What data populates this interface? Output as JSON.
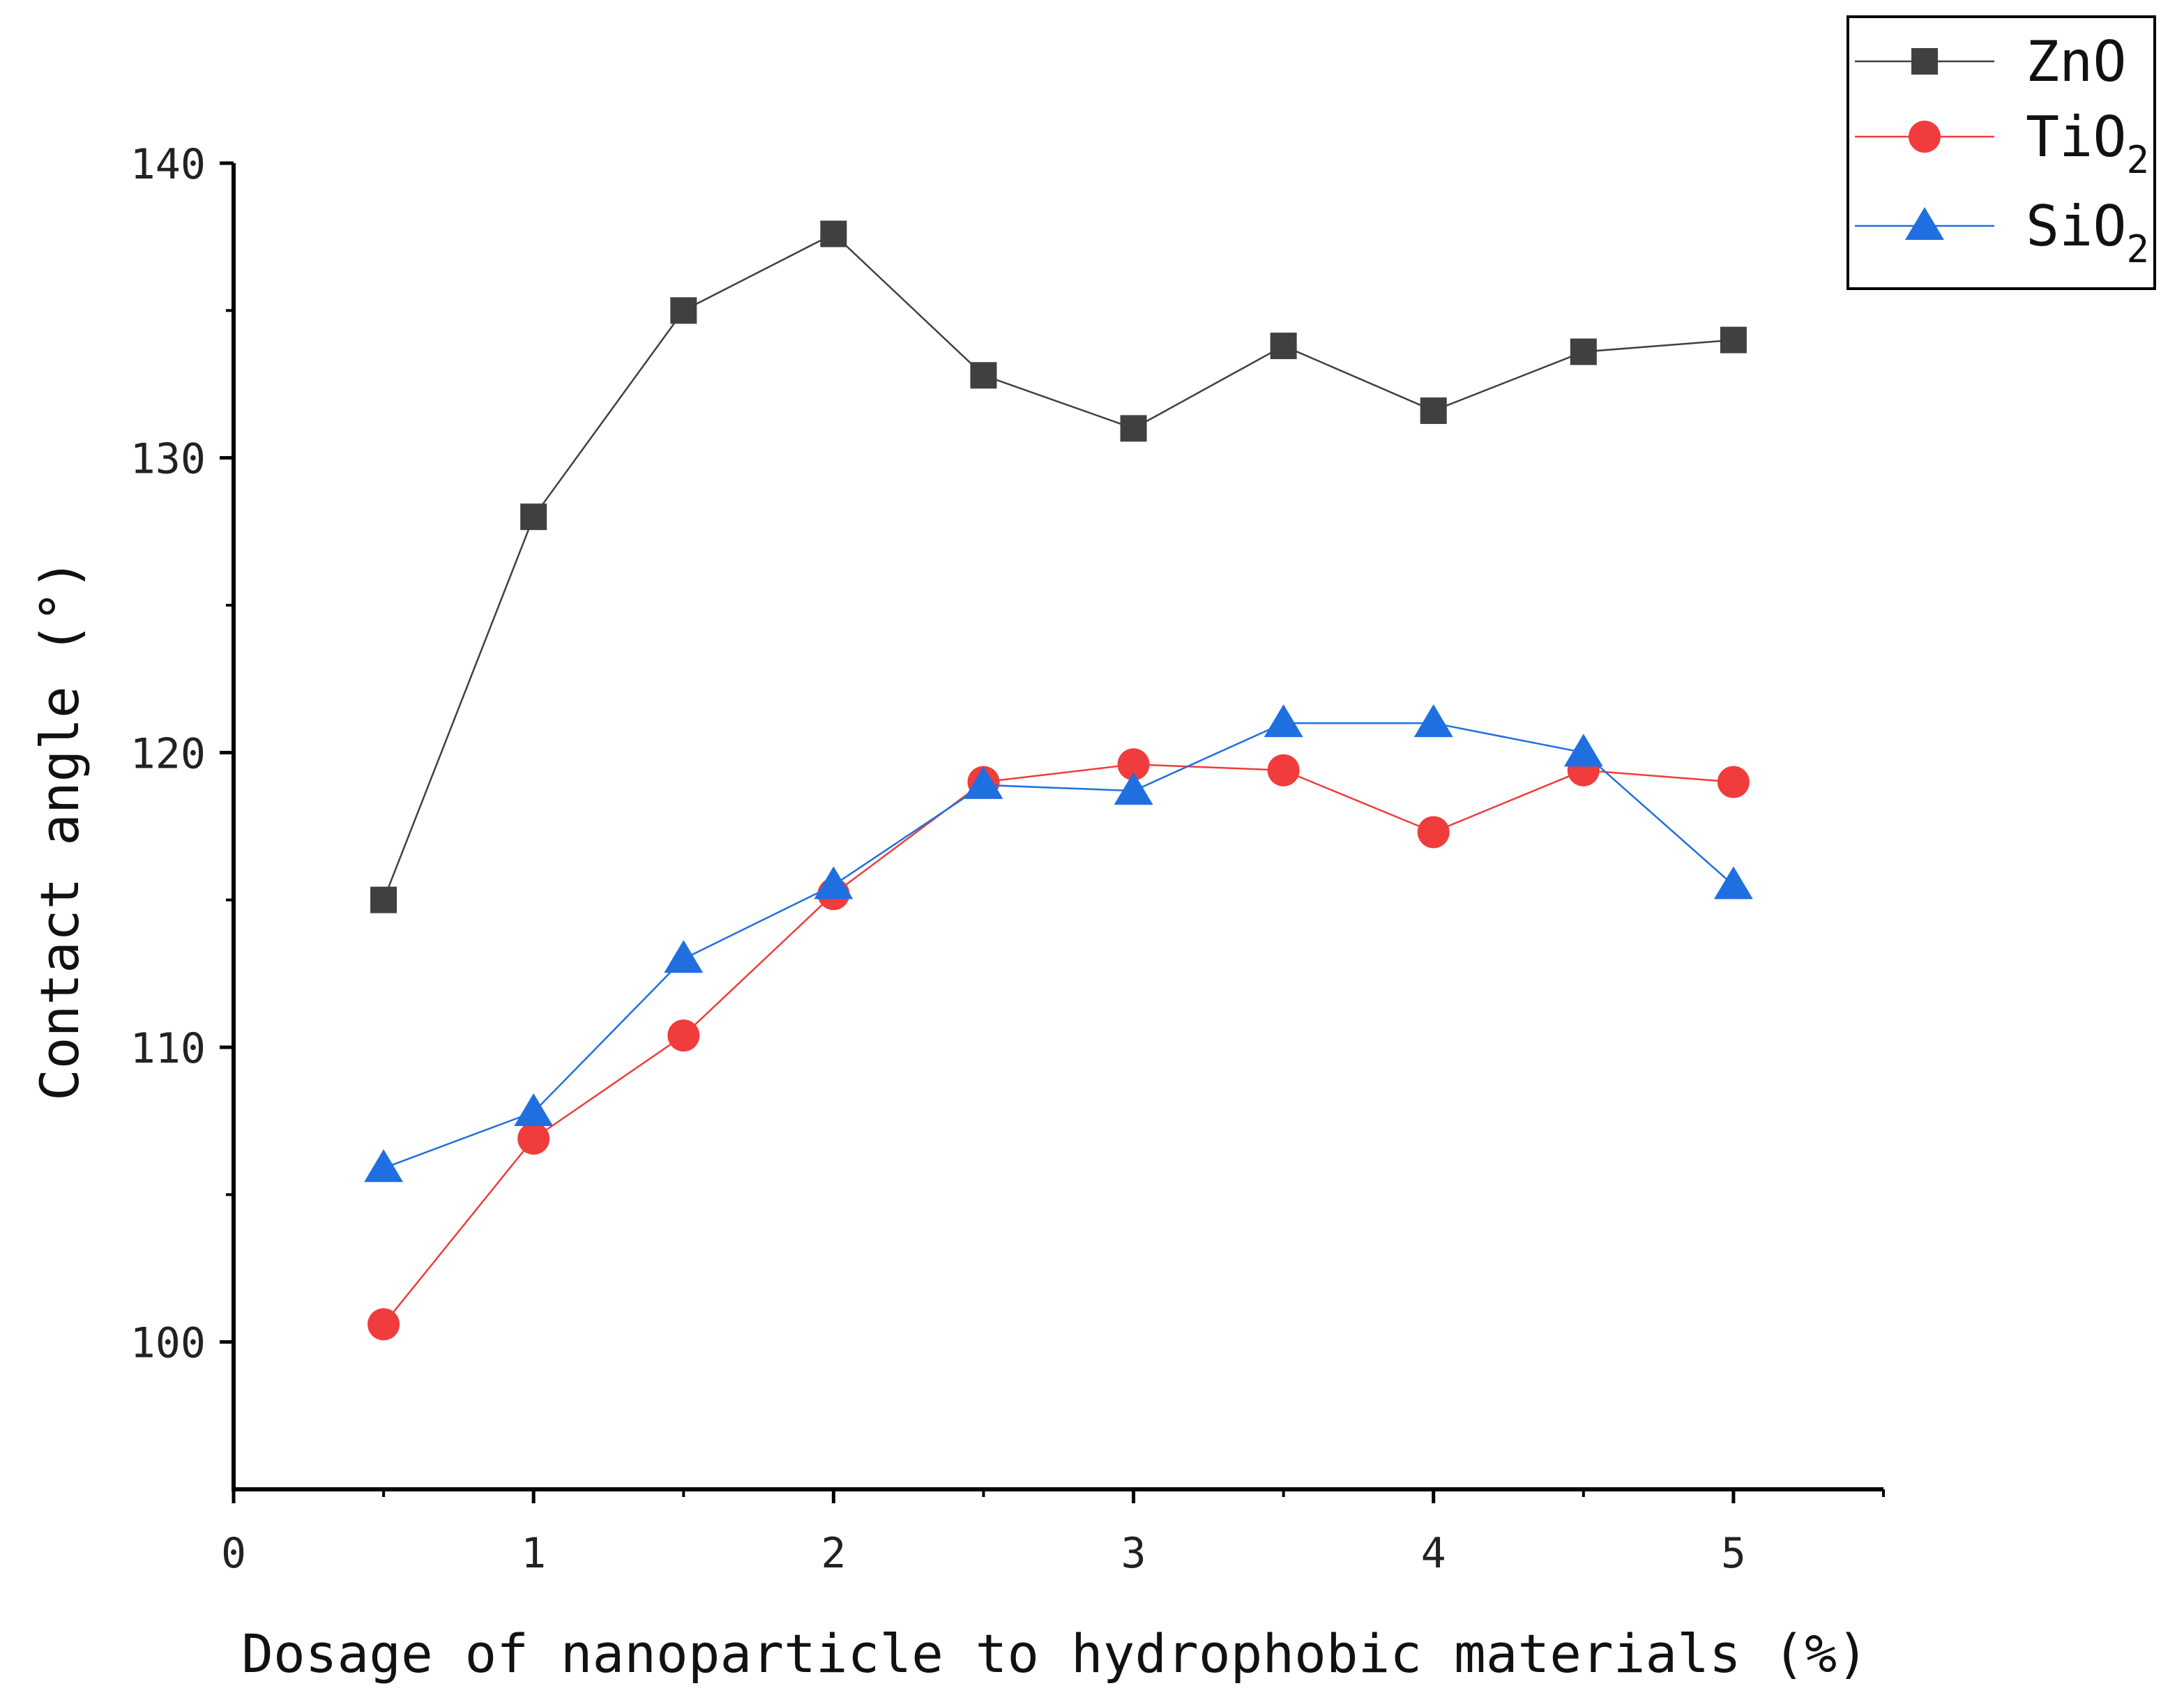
{
  "chart_data": {
    "type": "line",
    "title": "",
    "xlabel": "Dosage of nanoparticle to hydrophobic materials (%)",
    "ylabel": "Contact angle (°)",
    "xlim": [
      0,
      5.5
    ],
    "ylim": [
      95,
      140
    ],
    "xticks": [
      0,
      1,
      2,
      3,
      4,
      5
    ],
    "yticks": [
      100,
      110,
      120,
      130,
      140
    ],
    "grid": false,
    "legend_position": "top-right",
    "x": [
      0.5,
      1,
      1.5,
      2,
      2.5,
      3,
      3.5,
      4,
      4.5,
      5
    ],
    "series": [
      {
        "name": "ZnO",
        "legend_main": "ZnO",
        "legend_sub": "",
        "marker": "square",
        "color": "#404040",
        "values": [
          115,
          128,
          135,
          137.6,
          132.8,
          131,
          133.8,
          131.6,
          133.6,
          134
        ]
      },
      {
        "name": "TiO2",
        "legend_main": "TiO",
        "legend_sub": "2",
        "marker": "circle",
        "color": "#f03c3c",
        "values": [
          100.6,
          106.9,
          110.4,
          115.2,
          119,
          119.6,
          119.4,
          117.3,
          119.4,
          119
        ]
      },
      {
        "name": "SiO2",
        "legend_main": "SiO",
        "legend_sub": "2",
        "marker": "triangle",
        "color": "#1f6fe0",
        "values": [
          105.9,
          107.8,
          113,
          115.5,
          118.9,
          118.7,
          121,
          121,
          120,
          115.5
        ]
      }
    ]
  }
}
